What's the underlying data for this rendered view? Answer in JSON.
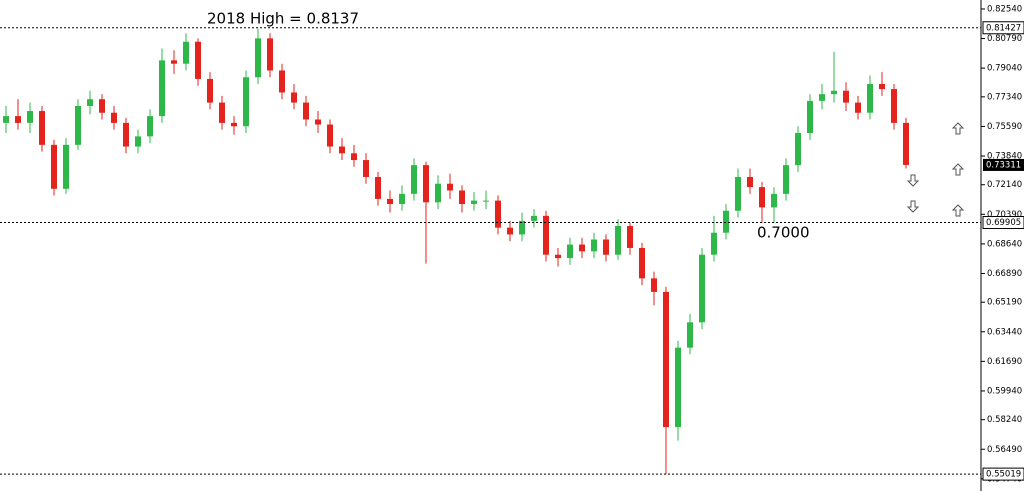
{
  "chart_data": {
    "type": "candlestick",
    "up_color": "#2fb84a",
    "down_color": "#e3231c",
    "ylim": [
      0.5402,
      0.8307
    ],
    "yticks": [
      {
        "value": 0.8254,
        "label": "0.82540"
      },
      {
        "value": 0.8079,
        "label": "0.80790"
      },
      {
        "value": 0.7904,
        "label": "0.79040"
      },
      {
        "value": 0.7734,
        "label": "0.77340"
      },
      {
        "value": 0.7559,
        "label": "0.75590"
      },
      {
        "value": 0.7384,
        "label": "0.73840"
      },
      {
        "value": 0.7214,
        "label": "0.72140"
      },
      {
        "value": 0.7039,
        "label": "0.70390"
      },
      {
        "value": 0.6864,
        "label": "0.68640"
      },
      {
        "value": 0.6689,
        "label": "0.66890"
      },
      {
        "value": 0.6519,
        "label": "0.65190"
      },
      {
        "value": 0.6344,
        "label": "0.63440"
      },
      {
        "value": 0.6169,
        "label": "0.61690"
      },
      {
        "value": 0.5994,
        "label": "0.59940"
      },
      {
        "value": 0.5824,
        "label": "0.58240"
      },
      {
        "value": 0.5649,
        "label": "0.56490"
      },
      {
        "value": 0.5474,
        "label": "0.54740"
      }
    ],
    "levels": [
      {
        "value": 0.81427,
        "label": "0.81427"
      },
      {
        "value": 0.69905,
        "label": "0.69905"
      },
      {
        "value": 0.55019,
        "label": "0.55019"
      }
    ],
    "current_price": {
      "value": 0.73311,
      "label": "0.73311"
    },
    "annotations": [
      "2018 High = 0.8137",
      "0.7000"
    ],
    "open": [
      0.758,
      0.762,
      0.758,
      0.765,
      0.745,
      0.719,
      0.745,
      0.768,
      0.772,
      0.764,
      0.758,
      0.744,
      0.75,
      0.762,
      0.795,
      0.793,
      0.806,
      0.784,
      0.77,
      0.758,
      0.756,
      0.785,
      0.808,
      0.789,
      0.776,
      0.77,
      0.76,
      0.757,
      0.744,
      0.74,
      0.736,
      0.726,
      0.713,
      0.71,
      0.716,
      0.733,
      0.711,
      0.722,
      0.718,
      0.71,
      0.712,
      0.712,
      0.696,
      0.692,
      0.7,
      0.703,
      0.68,
      0.678,
      0.686,
      0.682,
      0.689,
      0.68,
      0.697,
      0.684,
      0.666,
      0.658,
      0.578,
      0.625,
      0.64,
      0.68,
      0.693,
      0.706,
      0.726,
      0.72,
      0.708,
      0.716,
      0.733,
      0.752,
      0.771,
      0.775,
      0.777,
      0.77,
      0.764,
      0.781,
      0.778,
      0.758
    ],
    "high": [
      0.768,
      0.772,
      0.77,
      0.768,
      0.748,
      0.749,
      0.772,
      0.777,
      0.775,
      0.768,
      0.761,
      0.754,
      0.766,
      0.802,
      0.801,
      0.811,
      0.808,
      0.788,
      0.774,
      0.762,
      0.789,
      0.8137,
      0.811,
      0.793,
      0.781,
      0.774,
      0.765,
      0.76,
      0.749,
      0.745,
      0.74,
      0.729,
      0.718,
      0.721,
      0.737,
      0.735,
      0.727,
      0.728,
      0.721,
      0.717,
      0.718,
      0.715,
      0.7,
      0.705,
      0.707,
      0.706,
      0.684,
      0.69,
      0.69,
      0.693,
      0.692,
      0.701,
      0.699,
      0.687,
      0.67,
      0.661,
      0.629,
      0.645,
      0.684,
      0.703,
      0.71,
      0.731,
      0.731,
      0.723,
      0.72,
      0.737,
      0.756,
      0.775,
      0.781,
      0.8,
      0.782,
      0.774,
      0.786,
      0.788,
      0.781,
      0.761
    ],
    "low": [
      0.752,
      0.754,
      0.752,
      0.741,
      0.715,
      0.716,
      0.742,
      0.763,
      0.76,
      0.754,
      0.74,
      0.74,
      0.746,
      0.758,
      0.787,
      0.789,
      0.78,
      0.766,
      0.754,
      0.751,
      0.752,
      0.781,
      0.785,
      0.772,
      0.766,
      0.756,
      0.752,
      0.74,
      0.736,
      0.732,
      0.722,
      0.709,
      0.705,
      0.706,
      0.712,
      0.6747,
      0.707,
      0.713,
      0.705,
      0.706,
      0.707,
      0.692,
      0.688,
      0.688,
      0.696,
      0.676,
      0.673,
      0.674,
      0.678,
      0.678,
      0.676,
      0.677,
      0.68,
      0.662,
      0.65,
      0.55019,
      0.57,
      0.621,
      0.636,
      0.676,
      0.689,
      0.702,
      0.716,
      0.699,
      0.699,
      0.712,
      0.729,
      0.748,
      0.766,
      0.77,
      0.765,
      0.76,
      0.76,
      0.774,
      0.754,
      0.731
    ],
    "close": [
      0.762,
      0.758,
      0.765,
      0.745,
      0.719,
      0.745,
      0.768,
      0.772,
      0.764,
      0.758,
      0.744,
      0.75,
      0.762,
      0.795,
      0.793,
      0.806,
      0.784,
      0.77,
      0.758,
      0.756,
      0.785,
      0.808,
      0.789,
      0.776,
      0.77,
      0.76,
      0.757,
      0.744,
      0.74,
      0.736,
      0.726,
      0.713,
      0.71,
      0.716,
      0.733,
      0.711,
      0.722,
      0.718,
      0.71,
      0.712,
      0.712,
      0.696,
      0.692,
      0.7,
      0.703,
      0.68,
      0.678,
      0.686,
      0.682,
      0.689,
      0.68,
      0.697,
      0.684,
      0.666,
      0.658,
      0.578,
      0.625,
      0.64,
      0.68,
      0.693,
      0.706,
      0.726,
      0.72,
      0.708,
      0.716,
      0.733,
      0.752,
      0.771,
      0.775,
      0.777,
      0.77,
      0.764,
      0.781,
      0.778,
      0.758,
      0.73311
    ]
  }
}
